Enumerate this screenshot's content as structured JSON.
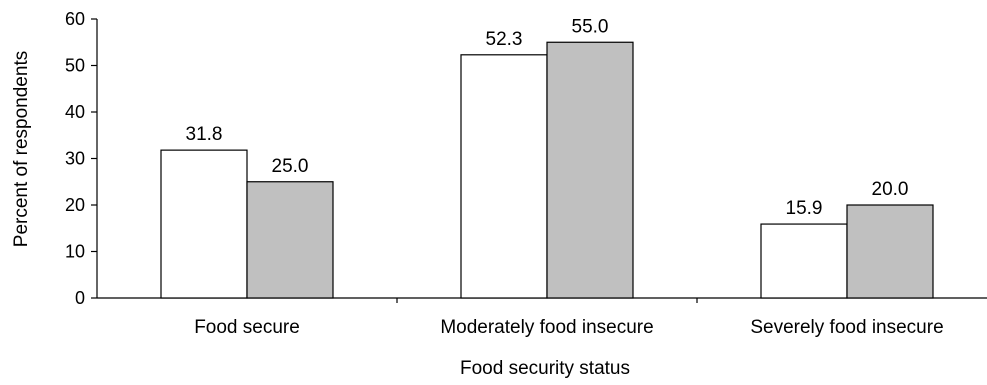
{
  "chart_data": {
    "type": "bar",
    "categories": [
      "Food secure",
      "Moderately food insecure",
      "Severely food insecure"
    ],
    "series": [
      {
        "values": [
          31.8,
          52.3,
          15.9
        ],
        "color": "#ffffff"
      },
      {
        "values": [
          25.0,
          55.0,
          20.0
        ],
        "color": "#c0c0c0"
      }
    ],
    "xlabel": "Food security status",
    "ylabel": "Percent of respondents",
    "ylim": [
      0,
      60
    ],
    "yticks": [
      0,
      10,
      20,
      30,
      40,
      50,
      60
    ],
    "grid": false,
    "data_labels": true
  }
}
